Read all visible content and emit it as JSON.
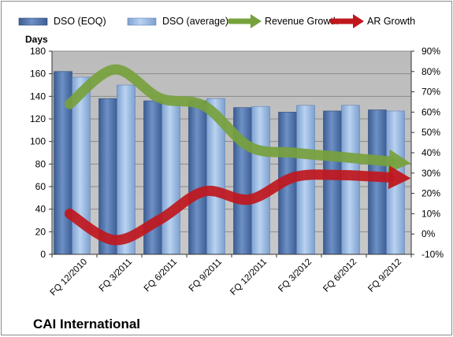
{
  "chart_data": {
    "type": "bar",
    "company": "CAI International",
    "ylabel": "Days",
    "ylim": [
      0,
      180
    ],
    "y_ticks": [
      "0",
      "20",
      "40",
      "60",
      "80",
      "100",
      "120",
      "140",
      "160",
      "180"
    ],
    "y2lim": [
      -10,
      90
    ],
    "y2_ticks": [
      "-10%",
      "0%",
      "10%",
      "20%",
      "30%",
      "40%",
      "50%",
      "60%",
      "70%",
      "80%",
      "90%"
    ],
    "categories": [
      "FQ 12/2010",
      "FQ 3/2011",
      "FQ 6/2011",
      "FQ 9/2011",
      "FQ 12/2011",
      "FQ 3/2012",
      "FQ 6/2012",
      "FQ 9/2012"
    ],
    "series": [
      {
        "name": "DSO (EOQ)",
        "kind": "bar",
        "axis": "left",
        "color": "#4a6ea5",
        "values": [
          162,
          138,
          136,
          136,
          130,
          126,
          127,
          128
        ]
      },
      {
        "name": "DSO (average)",
        "kind": "bar",
        "axis": "left",
        "color": "#8fb4e3",
        "values": [
          157,
          150,
          135,
          138,
          131,
          132,
          132,
          127
        ]
      },
      {
        "name": "Revenue Growth",
        "kind": "arrow-line",
        "axis": "right",
        "color": "#77a13d",
        "values": [
          64,
          81,
          67,
          63,
          43,
          40,
          38,
          36
        ]
      },
      {
        "name": "AR Growth",
        "kind": "arrow-line",
        "axis": "right",
        "color": "#c0171d",
        "values": [
          10,
          -3,
          7,
          21,
          17,
          28,
          29,
          28
        ]
      }
    ],
    "legend_position": "top",
    "grid": true,
    "plot_background": "#c0c0c0"
  }
}
